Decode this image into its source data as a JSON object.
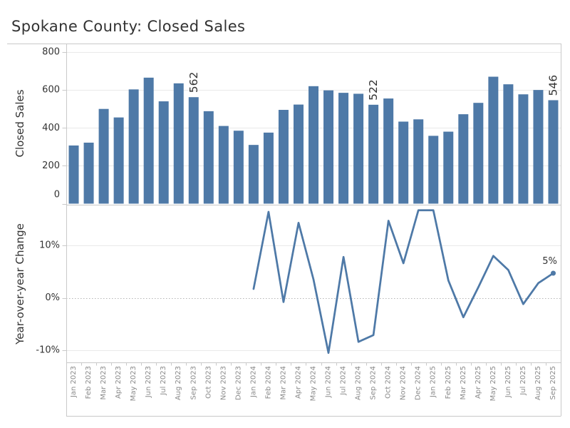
{
  "title": "Spokane County: Closed Sales",
  "colors": {
    "bar": "#4e79a7",
    "line": "#4e79a7",
    "axis_text": "#333333",
    "month_text": "#8a8a8a",
    "grid": "#e9e9e9",
    "rule": "#c9c9c9",
    "zero_dotted": "#b5b5b5",
    "title_text": "#323232"
  },
  "chart_data": [
    {
      "type": "bar",
      "ylabel": "Closed Sales",
      "categories": [
        "Jan 2023",
        "Feb 2023",
        "Mar 2023",
        "Apr 2023",
        "May 2023",
        "Jun 2023",
        "Jul 2023",
        "Aug 2023",
        "Sep 2023",
        "Oct 2023",
        "Nov 2023",
        "Dec 2023",
        "Jan 2024",
        "Feb 2024",
        "Mar 2024",
        "Apr 2024",
        "May 2024",
        "Jun 2024",
        "Jul 2024",
        "Aug 2024",
        "Sep 2024",
        "Oct 2024",
        "Nov 2024",
        "Dec 2024",
        "Jan 2025",
        "Feb 2025",
        "Mar 2025",
        "Apr 2025",
        "May 2025",
        "Jun 2025",
        "Jul 2025",
        "Aug 2025",
        "Sep 2025"
      ],
      "values": [
        307,
        322,
        500,
        455,
        603,
        665,
        540,
        635,
        562,
        488,
        410,
        385,
        310,
        375,
        495,
        523,
        620,
        598,
        585,
        580,
        522,
        555,
        433,
        445,
        358,
        380,
        472,
        532,
        670,
        630,
        577,
        600,
        546
      ],
      "yticks": [
        0,
        200,
        400,
        600,
        800
      ],
      "ylim": [
        0,
        845
      ],
      "grid": true,
      "annotations": [
        {
          "category": "Sep 2023",
          "index": 8,
          "label": "562"
        },
        {
          "category": "Sep 2024",
          "index": 20,
          "label": "522"
        },
        {
          "category": "Sep 2025",
          "index": 32,
          "label": "546"
        }
      ]
    },
    {
      "type": "line",
      "ylabel": "Year-over-year Change",
      "x": [
        "Jan 2024",
        "Feb 2024",
        "Mar 2024",
        "Apr 2024",
        "May 2024",
        "Jun 2024",
        "Jul 2024",
        "Aug 2024",
        "Sep 2024",
        "Oct 2024",
        "Nov 2024",
        "Dec 2024",
        "Jan 2025",
        "Feb 2025",
        "Mar 2025",
        "Apr 2025",
        "May 2025",
        "Jun 2025",
        "Jul 2025",
        "Aug 2025",
        "Sep 2025"
      ],
      "values_pct": [
        1.7,
        16.4,
        -0.8,
        14.3,
        3.5,
        -10.5,
        7.8,
        -8.4,
        -7.1,
        14.7,
        6.6,
        16.7,
        16.7,
        3.3,
        -3.7,
        2.0,
        8.0,
        5.3,
        -1.2,
        2.8,
        4.7
      ],
      "yticks": [
        "10%",
        "0%",
        "-10%"
      ],
      "ytick_values": [
        10,
        0,
        -10
      ],
      "ylim": [
        -12.3,
        17.6
      ],
      "grid": true,
      "zero_line": "dotted",
      "end_label": "5%"
    }
  ]
}
